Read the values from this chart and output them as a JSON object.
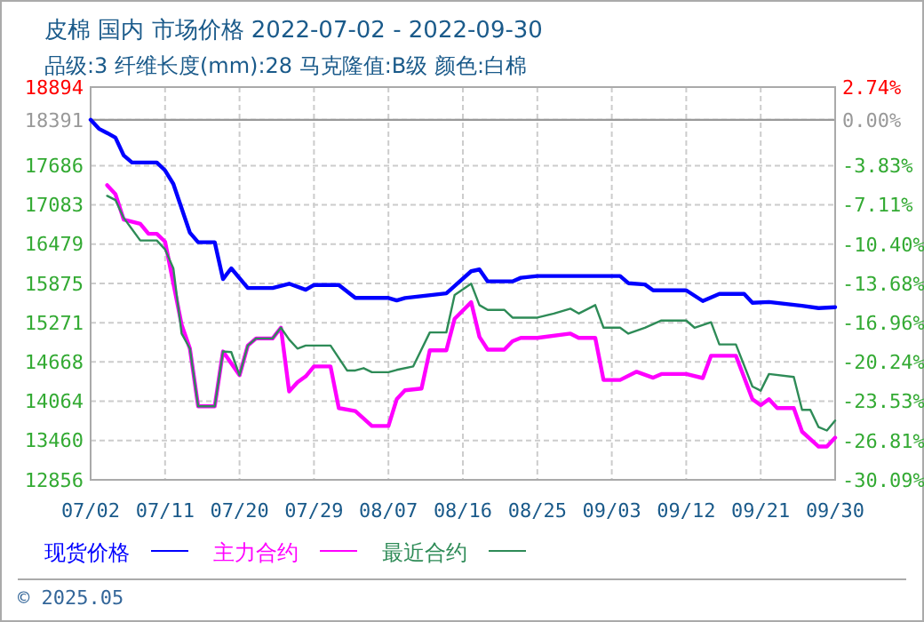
{
  "chart_data": {
    "type": "line",
    "title": "皮棉 国内 市场价格 2022-07-02 - 2022-09-30",
    "subtitle": "品级:3 纤维长度(mm):28 马克隆值:B级 颜色:白棉",
    "annotations": [
      "© 2025.05"
    ],
    "xlim": [
      "2022-07-02",
      "2022-09-30"
    ],
    "xticks": [
      {
        "value": "2022-07-02",
        "label": "07/02"
      },
      {
        "value": "2022-07-11",
        "label": "07/11"
      },
      {
        "value": "2022-07-20",
        "label": "07/20"
      },
      {
        "value": "2022-07-29",
        "label": "07/29"
      },
      {
        "value": "2022-08-07",
        "label": "08/07"
      },
      {
        "value": "2022-08-16",
        "label": "08/16"
      },
      {
        "value": "2022-08-25",
        "label": "08/25"
      },
      {
        "value": "2022-09-03",
        "label": "09/03"
      },
      {
        "value": "2022-09-12",
        "label": "09/12"
      },
      {
        "value": "2022-09-21",
        "label": "09/21"
      },
      {
        "value": "2022-09-30",
        "label": "09/30"
      }
    ],
    "ylim": [
      12856,
      18894
    ],
    "yticks": [
      12856,
      13460,
      14064,
      14668,
      15271,
      15875,
      16479,
      17083,
      17686,
      18391,
      18894
    ],
    "y2lim": [
      -30.09,
      2.74
    ],
    "y2ticks": [
      {
        "value": -30.09,
        "label": "-30.09%"
      },
      {
        "value": -26.81,
        "label": "-26.81%"
      },
      {
        "value": -23.53,
        "label": "-23.53%"
      },
      {
        "value": -20.24,
        "label": "-20.24%"
      },
      {
        "value": -16.96,
        "label": "-16.96%"
      },
      {
        "value": -13.68,
        "label": "-13.68%"
      },
      {
        "value": -10.4,
        "label": "-10.40%"
      },
      {
        "value": -7.11,
        "label": "-7.11%"
      },
      {
        "value": -3.83,
        "label": "-3.83%"
      },
      {
        "value": 0,
        "label": "0.00%"
      },
      {
        "value": 2.74,
        "label": "2.74%"
      }
    ],
    "ref_lines": [
      {
        "axis": "y2",
        "value": 0,
        "color": "#999999"
      }
    ],
    "grid": true,
    "legend": "bottom",
    "marker": "none",
    "line_style": "solid",
    "series": [
      {
        "name": "现货价格",
        "color": "#0000ff",
        "x": [
          "2022-07-02",
          "2022-07-03",
          "2022-07-04",
          "2022-07-05",
          "2022-07-06",
          "2022-07-07",
          "2022-07-10",
          "2022-07-11",
          "2022-07-12",
          "2022-07-14",
          "2022-07-15",
          "2022-07-17",
          "2022-07-18",
          "2022-07-19",
          "2022-07-21",
          "2022-07-24",
          "2022-07-26",
          "2022-07-28",
          "2022-07-29",
          "2022-08-01",
          "2022-08-03",
          "2022-08-07",
          "2022-08-08",
          "2022-08-09",
          "2022-08-14",
          "2022-08-17",
          "2022-08-18",
          "2022-08-19",
          "2022-08-22",
          "2022-08-23",
          "2022-08-25",
          "2022-09-04",
          "2022-09-05",
          "2022-09-07",
          "2022-09-08",
          "2022-09-12",
          "2022-09-14",
          "2022-09-16",
          "2022-09-19",
          "2022-09-20",
          "2022-09-22",
          "2022-09-26",
          "2022-09-28",
          "2022-09-30"
        ],
        "values": [
          18391,
          18254,
          18188,
          18117,
          17843,
          17734,
          17734,
          17613,
          17405,
          16655,
          16509,
          16509,
          15942,
          16107,
          15805,
          15805,
          15871,
          15778,
          15852,
          15852,
          15652,
          15652,
          15614,
          15652,
          15723,
          16063,
          16090,
          15907,
          15907,
          15962,
          15989,
          15989,
          15879,
          15860,
          15769,
          15769,
          15605,
          15715,
          15715,
          15578,
          15590,
          15532,
          15496,
          15510
        ]
      },
      {
        "name": "主力合约",
        "color": "#ff00ff",
        "x": [
          "2022-07-04",
          "2022-07-05",
          "2022-07-06",
          "2022-07-08",
          "2022-07-09",
          "2022-07-10",
          "2022-07-11",
          "2022-07-12",
          "2022-07-13",
          "2022-07-14",
          "2022-07-15",
          "2022-07-17",
          "2022-07-18",
          "2022-07-20",
          "2022-07-21",
          "2022-07-22",
          "2022-07-24",
          "2022-07-25",
          "2022-07-26",
          "2022-07-27",
          "2022-07-28",
          "2022-07-29",
          "2022-07-31",
          "2022-08-01",
          "2022-08-03",
          "2022-08-05",
          "2022-08-07",
          "2022-08-08",
          "2022-08-09",
          "2022-08-11",
          "2022-08-12",
          "2022-08-14",
          "2022-08-15",
          "2022-08-17",
          "2022-08-18",
          "2022-08-19",
          "2022-08-21",
          "2022-08-22",
          "2022-08-23",
          "2022-08-25",
          "2022-08-29",
          "2022-08-30",
          "2022-09-01",
          "2022-09-02",
          "2022-09-04",
          "2022-09-06",
          "2022-09-08",
          "2022-09-09",
          "2022-09-12",
          "2022-09-14",
          "2022-09-15",
          "2022-09-18",
          "2022-09-20",
          "2022-09-21",
          "2022-09-22",
          "2022-09-23",
          "2022-09-25",
          "2022-09-26",
          "2022-09-28",
          "2022-09-29",
          "2022-09-30"
        ],
        "values": [
          17386,
          17248,
          16857,
          16792,
          16638,
          16638,
          16517,
          15879,
          15241,
          14874,
          13986,
          13986,
          14829,
          14464,
          14920,
          15030,
          15030,
          15195,
          14216,
          14354,
          14447,
          14600,
          14600,
          13959,
          13913,
          13684,
          13684,
          14095,
          14232,
          14260,
          14847,
          14847,
          15332,
          15587,
          15054,
          14857,
          14857,
          14986,
          15038,
          15038,
          15104,
          15038,
          15038,
          14391,
          14391,
          14518,
          14426,
          14483,
          14483,
          14420,
          14764,
          14764,
          14095,
          14004,
          14095,
          13959,
          13959,
          13597,
          13368,
          13368,
          13505
        ]
      },
      {
        "name": "最近合约",
        "color": "#2e8b57",
        "x": [
          "2022-07-04",
          "2022-07-05",
          "2022-07-06",
          "2022-07-08",
          "2022-07-10",
          "2022-07-11",
          "2022-07-12",
          "2022-07-13",
          "2022-07-14",
          "2022-07-15",
          "2022-07-17",
          "2022-07-18",
          "2022-07-19",
          "2022-07-20",
          "2022-07-21",
          "2022-07-22",
          "2022-07-24",
          "2022-07-25",
          "2022-07-26",
          "2022-07-27",
          "2022-07-28",
          "2022-07-31",
          "2022-08-02",
          "2022-08-03",
          "2022-08-04",
          "2022-08-05",
          "2022-08-07",
          "2022-08-08",
          "2022-08-10",
          "2022-08-12",
          "2022-08-14",
          "2022-08-15",
          "2022-08-17",
          "2022-08-18",
          "2022-08-19",
          "2022-08-21",
          "2022-08-22",
          "2022-08-25",
          "2022-08-27",
          "2022-08-29",
          "2022-08-30",
          "2022-09-01",
          "2022-09-02",
          "2022-09-04",
          "2022-09-05",
          "2022-09-07",
          "2022-09-09",
          "2022-09-12",
          "2022-09-13",
          "2022-09-15",
          "2022-09-16",
          "2022-09-18",
          "2022-09-20",
          "2022-09-21",
          "2022-09-22",
          "2022-09-25",
          "2022-09-26",
          "2022-09-27",
          "2022-09-28",
          "2022-09-29",
          "2022-09-30"
        ],
        "values": [
          17222,
          17158,
          16884,
          16536,
          16536,
          16399,
          16107,
          15104,
          14874,
          13986,
          13986,
          14829,
          14820,
          14464,
          14920,
          15030,
          15030,
          15195,
          15012,
          14874,
          14920,
          14920,
          14537,
          14537,
          14573,
          14510,
          14510,
          14546,
          14600,
          15122,
          15122,
          15696,
          15871,
          15542,
          15469,
          15469,
          15350,
          15350,
          15413,
          15487,
          15413,
          15542,
          15195,
          15195,
          15104,
          15195,
          15305,
          15305,
          15195,
          15278,
          14937,
          14937,
          14291,
          14227,
          14483,
          14437,
          13932,
          13932,
          13666,
          13614,
          13767
        ]
      }
    ]
  }
}
